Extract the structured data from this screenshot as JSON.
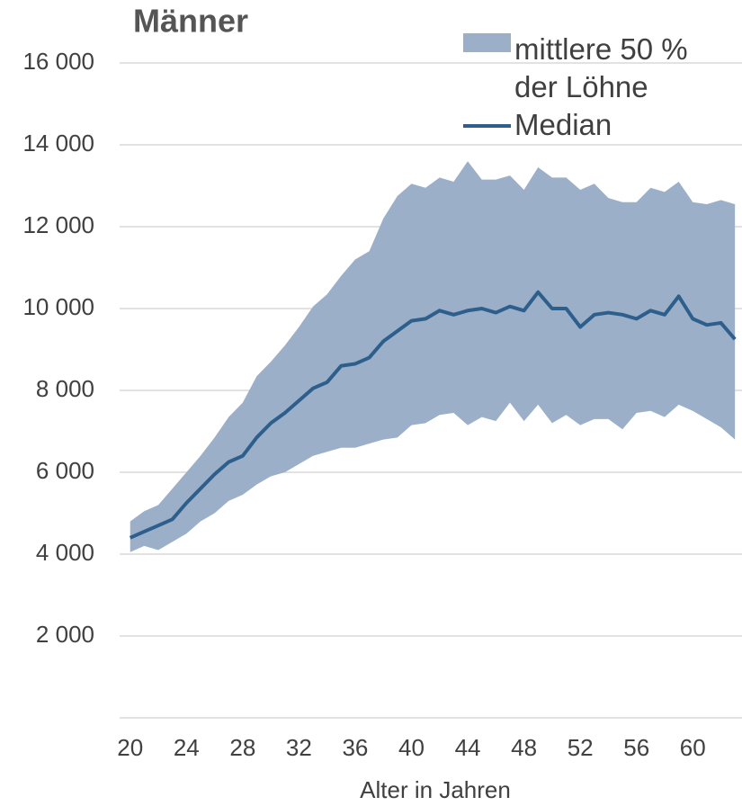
{
  "chart_data": {
    "type": "line",
    "title": "Männer",
    "xlabel": "Alter in Jahren",
    "x": [
      20,
      21,
      22,
      23,
      24,
      25,
      26,
      27,
      28,
      29,
      30,
      31,
      32,
      33,
      34,
      35,
      36,
      37,
      38,
      39,
      40,
      41,
      42,
      43,
      44,
      45,
      46,
      47,
      48,
      49,
      50,
      51,
      52,
      53,
      54,
      55,
      56,
      57,
      58,
      59,
      60,
      61,
      62,
      63
    ],
    "xlim": [
      19.25,
      63.5
    ],
    "xticks": [
      20,
      24,
      28,
      32,
      36,
      40,
      44,
      48,
      52,
      56,
      60
    ],
    "ylim": [
      0,
      16000
    ],
    "yticks": [
      {
        "value": 2000,
        "label": "2 000"
      },
      {
        "value": 4000,
        "label": "4 000"
      },
      {
        "value": 6000,
        "label": "6 000"
      },
      {
        "value": 8000,
        "label": "8 000"
      },
      {
        "value": 10000,
        "label": "10 000"
      },
      {
        "value": 12000,
        "label": "12 000"
      },
      {
        "value": 14000,
        "label": "14 000"
      },
      {
        "value": 16000,
        "label": "16 000"
      }
    ],
    "grid": true,
    "series": [
      {
        "name": "mittlere 50 % der Löhne",
        "color": "#9bb0c8",
        "lower": [
          4050,
          4200,
          4100,
          4300,
          4500,
          4800,
          5000,
          5300,
          5450,
          5700,
          5900,
          6000,
          6200,
          6400,
          6500,
          6600,
          6600,
          6700,
          6800,
          6850,
          7150,
          7200,
          7400,
          7450,
          7150,
          7350,
          7250,
          7700,
          7250,
          7650,
          7200,
          7400,
          7150,
          7300,
          7300,
          7050,
          7450,
          7500,
          7350,
          7650,
          7500,
          7300,
          7100,
          6800
        ],
        "upper": [
          4800,
          5050,
          5200,
          5600,
          6000,
          6400,
          6850,
          7350,
          7700,
          8350,
          8700,
          9100,
          9550,
          10050,
          10350,
          10800,
          11200,
          11400,
          12200,
          12750,
          13050,
          12950,
          13200,
          13100,
          13600,
          13150,
          13150,
          13250,
          12900,
          13450,
          13200,
          13200,
          12900,
          13050,
          12700,
          12600,
          12600,
          12950,
          12850,
          13100,
          12600,
          12550,
          12650,
          12550
        ]
      },
      {
        "name": "Median",
        "color": "#2e5f8c",
        "values": [
          4400,
          4550,
          4700,
          4850,
          5250,
          5600,
          5950,
          6250,
          6400,
          6850,
          7200,
          7450,
          7750,
          8050,
          8200,
          8600,
          8650,
          8800,
          9200,
          9450,
          9700,
          9750,
          9950,
          9850,
          9950,
          10000,
          9900,
          10050,
          9950,
          10400,
          10000,
          10000,
          9550,
          9850,
          9900,
          9850,
          9750,
          9950,
          9850,
          10300,
          9750,
          9600,
          9650,
          9250
        ]
      }
    ]
  }
}
